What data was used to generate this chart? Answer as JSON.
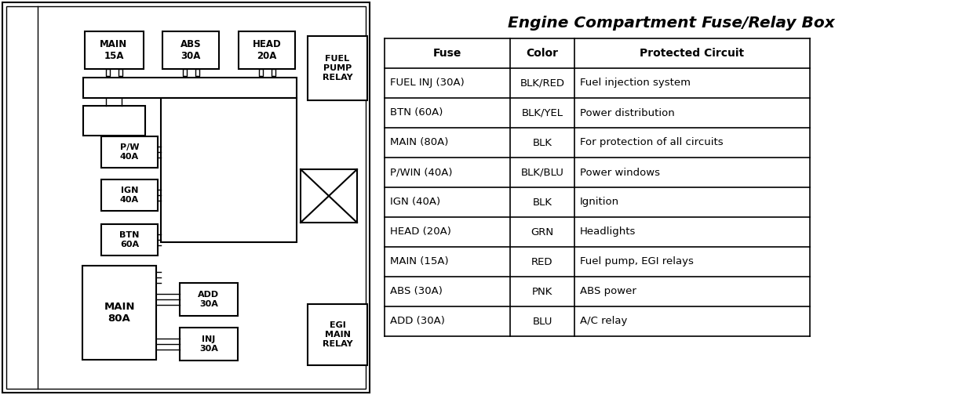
{
  "title": "Engine Compartment Fuse/Relay Box",
  "bg_color": "#ffffff",
  "table_headers": [
    "Fuse",
    "Color",
    "Protected Circuit"
  ],
  "table_rows": [
    [
      "FUEL INJ (30A)",
      "BLK/RED",
      "Fuel injection system"
    ],
    [
      "BTN (60A)",
      "BLK/YEL",
      "Power distribution"
    ],
    [
      "MAIN (80A)",
      "BLK",
      "For protection of all circuits"
    ],
    [
      "P/WIN (40A)",
      "BLK/BLU",
      "Power windows"
    ],
    [
      "IGN (40A)",
      "BLK",
      "Ignition"
    ],
    [
      "HEAD (20A)",
      "GRN",
      "Headlights"
    ],
    [
      "MAIN (15A)",
      "RED",
      "Fuel pump, EGI relays"
    ],
    [
      "ABS (30A)",
      "PNK",
      "ABS power"
    ],
    [
      "ADD (30A)",
      "BLU",
      "A/C relay"
    ]
  ]
}
